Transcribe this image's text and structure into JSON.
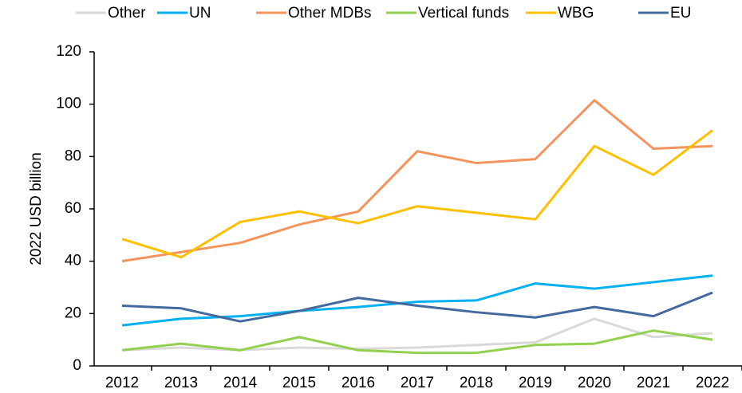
{
  "chart_data": {
    "type": "line",
    "y_label": "2022 USD billion",
    "categories": [
      "2012",
      "2013",
      "2014",
      "2015",
      "2016",
      "2017",
      "2018",
      "2019",
      "2020",
      "2021",
      "2022"
    ],
    "series": [
      {
        "name": "Other",
        "color": "#d9d9d9",
        "values": [
          6,
          7,
          6,
          7,
          6.5,
          7,
          8,
          9,
          18,
          11,
          12.5
        ]
      },
      {
        "name": "UN",
        "color": "#00b0f0",
        "values": [
          15.5,
          18,
          19,
          21,
          22.5,
          24.5,
          25,
          31.5,
          29.5,
          32,
          34.5
        ]
      },
      {
        "name": "Other MDBs",
        "color": "#f4945c",
        "values": [
          40,
          43.5,
          47,
          54,
          59,
          82,
          77.5,
          79,
          101.5,
          83,
          84
        ]
      },
      {
        "name": "Vertical funds",
        "color": "#92d050",
        "values": [
          6,
          8.5,
          6,
          11,
          6,
          5,
          5,
          8,
          8.5,
          13.5,
          10
        ]
      },
      {
        "name": "WBG",
        "color": "#ffc000",
        "values": [
          48.5,
          41.5,
          55,
          59,
          54.5,
          61,
          58.5,
          56,
          84,
          73,
          90
        ]
      },
      {
        "name": "EU",
        "color": "#44699e",
        "values": [
          23,
          22,
          17,
          21,
          26,
          23,
          20.5,
          18.5,
          22.5,
          19,
          28
        ]
      }
    ],
    "ylim": [
      0,
      120
    ],
    "yticks": [
      0,
      20,
      40,
      60,
      80,
      100,
      120
    ],
    "grid": false
  }
}
